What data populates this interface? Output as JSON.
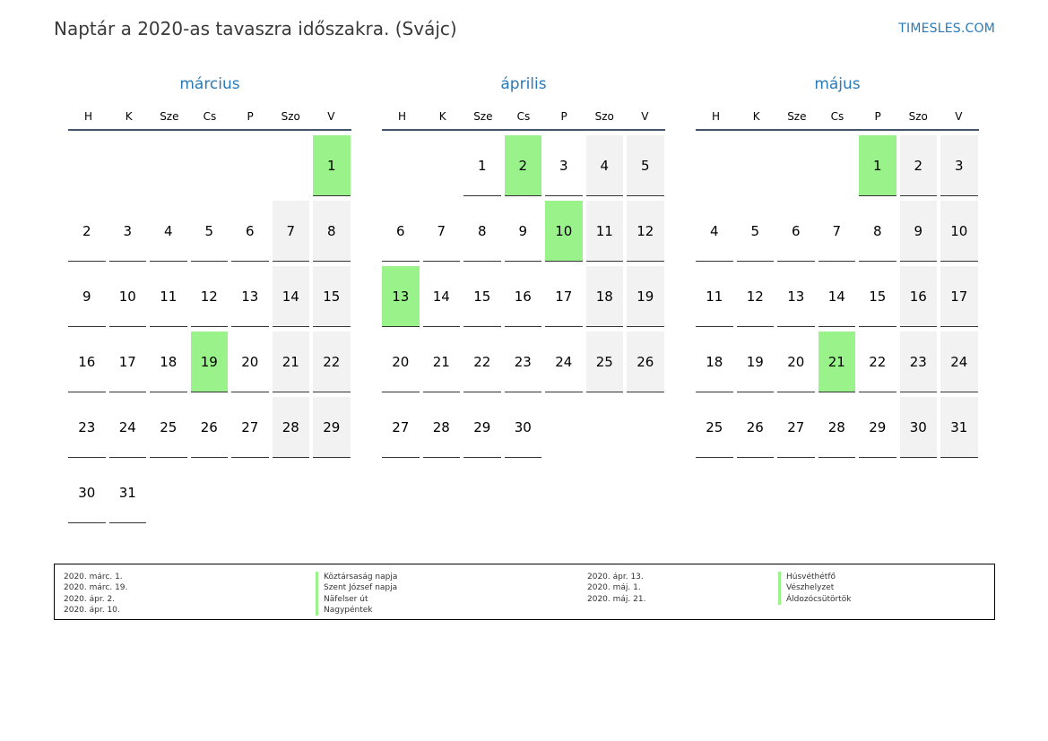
{
  "header": {
    "title": "Naptár a 2020-as tavaszra időszakra. (Svájc)",
    "site": "TIMESLES.COM"
  },
  "weekdays": [
    "H",
    "K",
    "Sze",
    "Cs",
    "P",
    "Szo",
    "V"
  ],
  "colors": {
    "accent": "#2a7ab8",
    "holiday": "#99f38a",
    "weekend": "#f2f2f2",
    "rule": "#44546a"
  },
  "months": [
    {
      "name": "március",
      "first_weekday_index": 6,
      "days": 31,
      "holidays": [
        1,
        19
      ]
    },
    {
      "name": "április",
      "first_weekday_index": 2,
      "days": 30,
      "holidays": [
        2,
        10,
        13
      ]
    },
    {
      "name": "május",
      "first_weekday_index": 4,
      "days": 31,
      "holidays": [
        1,
        21
      ]
    }
  ],
  "legend": [
    {
      "date": "2020. márc. 1.",
      "name": "Köztársaság napja"
    },
    {
      "date": "2020. márc. 19.",
      "name": "Szent József napja"
    },
    {
      "date": "2020. ápr. 2.",
      "name": "Näfelser út"
    },
    {
      "date": "2020. ápr. 10.",
      "name": "Nagypéntek"
    },
    {
      "date": "2020. ápr. 13.",
      "name": "Húsvéthétfő"
    },
    {
      "date": "2020. máj. 1.",
      "name": "Vészhelyzet"
    },
    {
      "date": "2020. máj. 21.",
      "name": "Áldozócsütörtök"
    }
  ]
}
